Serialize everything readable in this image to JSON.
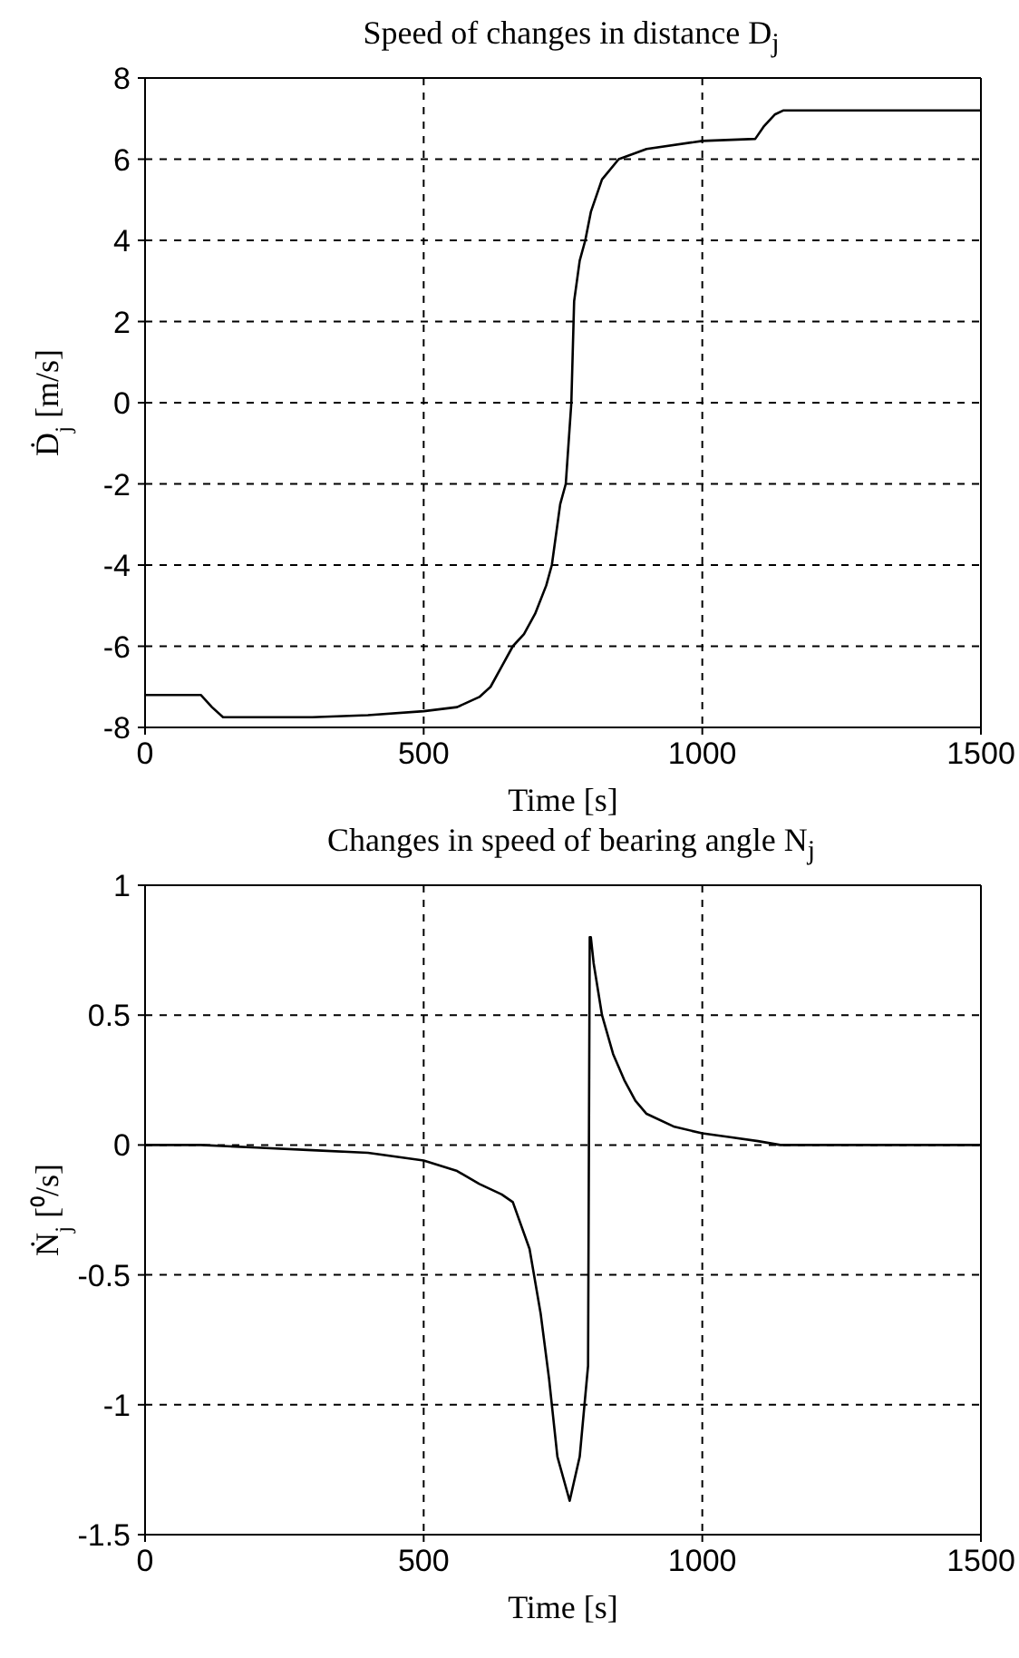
{
  "chart_data": [
    {
      "type": "line",
      "title": "Speed of changes in distance D$_{j}$",
      "xlabel": "Time [s]",
      "ylabel": "Ḋ$_{j}$ [m/s]",
      "xlim": [
        0,
        1500
      ],
      "xticks": [
        0,
        500,
        1000,
        1500
      ],
      "ylim": [
        -8,
        8
      ],
      "yticks": [
        -8,
        -6,
        -4,
        -2,
        0,
        2,
        4,
        6,
        8
      ],
      "grid": true,
      "legend": false,
      "marker": "none",
      "line_style": "solid",
      "series": [
        {
          "color": "#000000",
          "x": [
            0,
            100,
            120,
            140,
            300,
            400,
            500,
            560,
            600,
            620,
            640,
            660,
            680,
            700,
            720,
            730,
            745,
            755,
            765,
            770,
            780,
            790,
            800,
            820,
            850,
            900,
            1000,
            1095,
            1110,
            1130,
            1145,
            1200,
            1500
          ],
          "values": [
            -7.2,
            -7.2,
            -7.5,
            -7.75,
            -7.75,
            -7.7,
            -7.6,
            -7.5,
            -7.25,
            -7.0,
            -6.5,
            -6.0,
            -5.7,
            -5.2,
            -4.5,
            -4.0,
            -2.5,
            -2.0,
            0,
            2.5,
            3.5,
            4.0,
            4.7,
            5.5,
            6.0,
            6.25,
            6.45,
            6.5,
            6.8,
            7.1,
            7.2,
            7.2,
            7.2
          ]
        }
      ]
    },
    {
      "type": "line",
      "title": "Changes in speed of bearing angle N$_{j}$",
      "xlabel": "Time [s]",
      "ylabel": "Ṅ$_{j}$ [⁰/s]",
      "xlim": [
        0,
        1500
      ],
      "xticks": [
        0,
        500,
        1000,
        1500
      ],
      "ylim": [
        -1.5,
        1
      ],
      "yticks": [
        -1.5,
        -1,
        -0.5,
        0,
        0.5,
        1
      ],
      "grid": true,
      "legend": false,
      "marker": "none",
      "line_style": "solid",
      "series": [
        {
          "color": "#000000",
          "x": [
            0,
            100,
            200,
            300,
            400,
            500,
            560,
            600,
            640,
            660,
            690,
            710,
            725,
            740,
            762,
            780,
            795,
            798,
            800,
            805,
            820,
            840,
            860,
            880,
            900,
            950,
            1000,
            1050,
            1100,
            1140,
            1500
          ],
          "values": [
            0,
            0,
            -0.01,
            -0.02,
            -0.03,
            -0.06,
            -0.1,
            -0.15,
            -0.19,
            -0.22,
            -0.4,
            -0.65,
            -0.9,
            -1.2,
            -1.37,
            -1.2,
            -0.85,
            0.8,
            0.8,
            0.7,
            0.5,
            0.35,
            0.25,
            0.17,
            0.12,
            0.07,
            0.045,
            0.03,
            0.015,
            0,
            0
          ]
        }
      ]
    }
  ]
}
